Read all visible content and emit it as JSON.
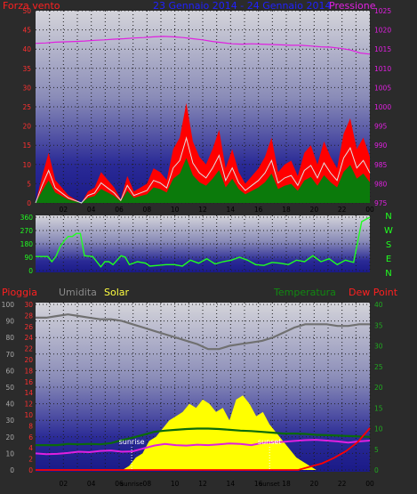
{
  "colors": {
    "background": "#2b2b2b",
    "wind": "#ff2020",
    "wind_gust_band": "#ff0000",
    "wind_avg": "#0b7a0b",
    "wind_line": "#e0e0e0",
    "pressure": "#e020e0",
    "direction": "#20ff20",
    "humidity": "#707070",
    "temperature": "#0b6a0b",
    "dewpoint": "#e020e0",
    "solar": "#ffff00",
    "rain": "#ff0000",
    "title": "#2020ff"
  },
  "header": {
    "wind_label": "Forza vento",
    "date_range": "23 Gennaio 2014 - 24 Gennaio 2014",
    "pressure_label": "Pressione"
  },
  "bottom_header": {
    "rain_label": "Pioggia",
    "humidity_label": "Umidita",
    "solar_label": "Solar",
    "temperature_label": "Temperatura",
    "dewpoint_label": "Dew Point"
  },
  "chart_data": [
    {
      "type": "area",
      "name": "wind_pressure",
      "x_ticks": [
        "02",
        "04",
        "06",
        "08",
        "10",
        "12",
        "14",
        "16",
        "18",
        "20",
        "22",
        "00"
      ],
      "ylim_left": [
        0,
        50
      ],
      "yticks_left": [
        "0",
        "5",
        "10",
        "15",
        "20",
        "25",
        "30",
        "35",
        "40",
        "45",
        "50"
      ],
      "ylim_right": [
        975,
        1025
      ],
      "yticks_right": [
        "975",
        "980",
        "985",
        "990",
        "995",
        "1000",
        "1005",
        "1010",
        "1015",
        "1020",
        "1025"
      ],
      "series": [
        {
          "name": "Forza vento",
          "axis": "left",
          "values": [
            0,
            7,
            13,
            6,
            4,
            2,
            1,
            0,
            3,
            4,
            8,
            6,
            4,
            1,
            7,
            3,
            4,
            5,
            9,
            8,
            6,
            14,
            17,
            26,
            16,
            12,
            10,
            14,
            19,
            9,
            14,
            8,
            5,
            7,
            9,
            12,
            17,
            8,
            10,
            11,
            7,
            13,
            15,
            10,
            16,
            12,
            9,
            18,
            22,
            14,
            17,
            12
          ]
        },
        {
          "name": "Pressione",
          "axis": "right",
          "values": [
            1016.5,
            1016.6,
            1016.8,
            1016.9,
            1017.0,
            1017.1,
            1017.3,
            1017.4,
            1017.6,
            1017.7,
            1017.9,
            1018.0,
            1018.2,
            1018.3,
            1018.2,
            1018.0,
            1017.7,
            1017.4,
            1017.0,
            1016.7,
            1016.4,
            1016.3,
            1016.4,
            1016.3,
            1016.2,
            1016.1,
            1016.0,
            1016.0,
            1015.8,
            1015.6,
            1015.5,
            1015.2,
            1014.8,
            1014.0,
            1013.7
          ]
        }
      ],
      "grid": true
    },
    {
      "type": "line",
      "name": "direction",
      "yticks": [
        "360",
        "270",
        "180",
        "90",
        "0"
      ],
      "ylim": [
        0,
        360
      ],
      "compass_labels": [
        "N",
        "W",
        "S",
        "E",
        "N"
      ],
      "values": [
        [
          0,
          95
        ],
        [
          3,
          95
        ],
        [
          4,
          60
        ],
        [
          5,
          95
        ],
        [
          6,
          160
        ],
        [
          7,
          200
        ],
        [
          8,
          230
        ],
        [
          9,
          230
        ],
        [
          10,
          250
        ],
        [
          11,
          250
        ],
        [
          12,
          100
        ],
        [
          14,
          95
        ],
        [
          16,
          25
        ],
        [
          17,
          60
        ],
        [
          18,
          60
        ],
        [
          19,
          40
        ],
        [
          21,
          100
        ],
        [
          22,
          90
        ],
        [
          23,
          40
        ],
        [
          25,
          60
        ],
        [
          27,
          50
        ],
        [
          28,
          30
        ],
        [
          30,
          35
        ],
        [
          32,
          40
        ],
        [
          34,
          40
        ],
        [
          36,
          30
        ],
        [
          38,
          70
        ],
        [
          40,
          50
        ],
        [
          42,
          80
        ],
        [
          44,
          45
        ],
        [
          46,
          60
        ],
        [
          48,
          70
        ],
        [
          50,
          90
        ],
        [
          52,
          70
        ],
        [
          54,
          40
        ],
        [
          56,
          35
        ],
        [
          58,
          55
        ],
        [
          60,
          50
        ],
        [
          62,
          40
        ],
        [
          64,
          70
        ],
        [
          66,
          60
        ],
        [
          68,
          100
        ],
        [
          70,
          60
        ],
        [
          72,
          80
        ],
        [
          74,
          40
        ],
        [
          76,
          70
        ],
        [
          78,
          55
        ],
        [
          80,
          330
        ],
        [
          82,
          360
        ]
      ]
    },
    {
      "type": "line",
      "name": "rain_hum_temp",
      "yticks_left": [
        "0",
        "10",
        "20",
        "30",
        "40",
        "50",
        "60",
        "70",
        "80",
        "90",
        "100"
      ],
      "ylim_left": [
        0,
        100
      ],
      "yticks_rain": [
        "0",
        "2",
        "4",
        "6",
        "8",
        "10",
        "12",
        "14",
        "16",
        "18",
        "20",
        "22",
        "24",
        "26",
        "28",
        "30"
      ],
      "ylim_rain": [
        0,
        30
      ],
      "yticks_right": [
        "0",
        "5",
        "10",
        "15",
        "20",
        "25",
        "30",
        "35",
        "40"
      ],
      "ylim_right": [
        0,
        40
      ],
      "markers": [
        {
          "label": "sunrise",
          "hour": 6.9
        },
        {
          "label": "sunset",
          "hour": 16.8
        }
      ],
      "series": [
        {
          "name": "Umidita",
          "axis": "left",
          "values": [
            92,
            92,
            93,
            94,
            93,
            92,
            91,
            91,
            90,
            88,
            86,
            84,
            82,
            80,
            78,
            76,
            73,
            73,
            75,
            76,
            77,
            78,
            80,
            83,
            86,
            88,
            88,
            88,
            87,
            87,
            88,
            88
          ]
        },
        {
          "name": "Temperatura",
          "axis": "right",
          "values": [
            6.0,
            6.0,
            6.0,
            6.3,
            6.2,
            6.3,
            6.2,
            6.5,
            7.2,
            7.8,
            8.5,
            9.2,
            9.5,
            9.7,
            9.9,
            10.0,
            10.0,
            9.9,
            9.7,
            9.5,
            9.4,
            9.2,
            9.0,
            8.8,
            8.8,
            8.7,
            8.5,
            8.4,
            8.3,
            8.2,
            8.1,
            8.0
          ]
        },
        {
          "name": "Dew Point",
          "axis": "right",
          "values": [
            4.0,
            3.8,
            3.9,
            4.1,
            4.4,
            4.3,
            4.6,
            4.7,
            4.4,
            4.5,
            5.2,
            5.9,
            6.3,
            6.0,
            5.9,
            6.1,
            6.0,
            6.2,
            6.4,
            6.3,
            6.0,
            6.5,
            6.7,
            6.8,
            7.0,
            7.2,
            7.3,
            7.1,
            6.9,
            6.6,
            6.9,
            7.1
          ]
        },
        {
          "name": "Solar",
          "axis": "right",
          "values": [
            0,
            0,
            0,
            0,
            0,
            0,
            0,
            0,
            0,
            0,
            0,
            0,
            0,
            0,
            1,
            3,
            4,
            7,
            8,
            10,
            12,
            13,
            14,
            16,
            15,
            17,
            16,
            14,
            15,
            12,
            17,
            18,
            16,
            13,
            14,
            11,
            9,
            7,
            5,
            3,
            2,
            1,
            0,
            0,
            0,
            0,
            0,
            0,
            0,
            0,
            0
          ]
        },
        {
          "name": "Pioggia",
          "axis": "rain",
          "values": [
            0,
            0,
            0,
            0,
            0,
            0,
            0,
            0,
            0,
            0,
            0,
            0,
            0,
            0,
            0,
            0,
            0,
            0,
            0,
            0,
            0,
            0,
            0,
            0.6,
            1.2,
            2.2,
            3.4,
            5.1,
            7.6
          ]
        }
      ],
      "grid": true
    }
  ]
}
